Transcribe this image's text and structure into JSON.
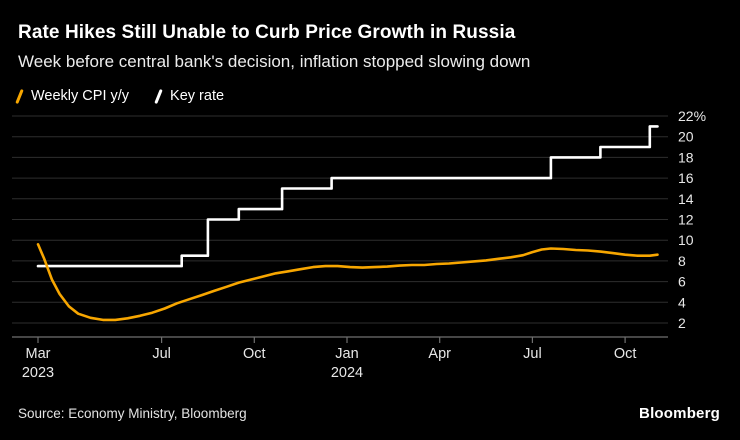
{
  "header": {
    "title": "Rate Hikes Still Unable to Curb Price Growth in Russia",
    "subtitle": "Week before central bank's decision, inflation stopped slowing down"
  },
  "legend": {
    "items": [
      {
        "label": "Weekly CPI y/y",
        "color": "#f7a600"
      },
      {
        "label": "Key rate",
        "color": "#ffffff"
      }
    ]
  },
  "chart_data": {
    "type": "line",
    "title": "Rate Hikes Still Unable to Curb Price Growth in Russia",
    "x_unit": "months since Mar 2023",
    "xlim": [
      -0.85,
      20.4
    ],
    "ylim": [
      2,
      22
    ],
    "grid": true,
    "legend_position": "top-left",
    "y_axis_side": "right",
    "x_ticks": [
      {
        "pos": 0,
        "label": "Mar",
        "year": "2023"
      },
      {
        "pos": 4,
        "label": "Jul"
      },
      {
        "pos": 7,
        "label": "Oct"
      },
      {
        "pos": 10,
        "label": "Jan",
        "year": "2024"
      },
      {
        "pos": 13,
        "label": "Apr"
      },
      {
        "pos": 16,
        "label": "Jul"
      },
      {
        "pos": 19,
        "label": "Oct"
      }
    ],
    "y_ticks": [
      {
        "value": 22,
        "label": "22%"
      },
      {
        "value": 20,
        "label": "20"
      },
      {
        "value": 18,
        "label": "18"
      },
      {
        "value": 16,
        "label": "16"
      },
      {
        "value": 14,
        "label": "14"
      },
      {
        "value": 12,
        "label": "12"
      },
      {
        "value": 10,
        "label": "10"
      },
      {
        "value": 8,
        "label": "8"
      },
      {
        "value": 6,
        "label": "6"
      },
      {
        "value": 4,
        "label": "4"
      },
      {
        "value": 2,
        "label": "2"
      }
    ],
    "series": [
      {
        "name": "Weekly CPI y/y",
        "color": "#f7a600",
        "line_style": "solid",
        "points": [
          [
            0,
            9.6
          ],
          [
            0.2,
            8.2
          ],
          [
            0.45,
            6.2
          ],
          [
            0.7,
            4.8
          ],
          [
            1,
            3.6
          ],
          [
            1.3,
            2.9
          ],
          [
            1.7,
            2.5
          ],
          [
            2.1,
            2.3
          ],
          [
            2.5,
            2.3
          ],
          [
            2.9,
            2.45
          ],
          [
            3.3,
            2.7
          ],
          [
            3.7,
            3.0
          ],
          [
            4.1,
            3.4
          ],
          [
            4.5,
            3.9
          ],
          [
            4.9,
            4.3
          ],
          [
            5.3,
            4.7
          ],
          [
            5.7,
            5.1
          ],
          [
            6.1,
            5.5
          ],
          [
            6.5,
            5.9
          ],
          [
            6.9,
            6.2
          ],
          [
            7.3,
            6.5
          ],
          [
            7.7,
            6.8
          ],
          [
            8.1,
            7.0
          ],
          [
            8.5,
            7.2
          ],
          [
            8.9,
            7.4
          ],
          [
            9.3,
            7.5
          ],
          [
            9.7,
            7.5
          ],
          [
            10.1,
            7.4
          ],
          [
            10.5,
            7.35
          ],
          [
            10.9,
            7.4
          ],
          [
            11.3,
            7.45
          ],
          [
            11.7,
            7.55
          ],
          [
            12.1,
            7.6
          ],
          [
            12.5,
            7.6
          ],
          [
            12.9,
            7.7
          ],
          [
            13.3,
            7.75
          ],
          [
            13.7,
            7.85
          ],
          [
            14.1,
            7.95
          ],
          [
            14.5,
            8.05
          ],
          [
            14.9,
            8.2
          ],
          [
            15.3,
            8.35
          ],
          [
            15.7,
            8.55
          ],
          [
            16,
            8.85
          ],
          [
            16.3,
            9.1
          ],
          [
            16.6,
            9.2
          ],
          [
            17,
            9.15
          ],
          [
            17.4,
            9.05
          ],
          [
            17.8,
            9.0
          ],
          [
            18.2,
            8.9
          ],
          [
            18.6,
            8.75
          ],
          [
            19,
            8.6
          ],
          [
            19.4,
            8.5
          ],
          [
            19.8,
            8.5
          ],
          [
            20.05,
            8.6
          ]
        ]
      },
      {
        "name": "Key rate",
        "color": "#ffffff",
        "line_style": "step",
        "points": [
          [
            0,
            7.5
          ],
          [
            4.65,
            7.5
          ],
          [
            4.65,
            8.5
          ],
          [
            5.5,
            8.5
          ],
          [
            5.5,
            12
          ],
          [
            6.5,
            12
          ],
          [
            6.5,
            13
          ],
          [
            7.9,
            13
          ],
          [
            7.9,
            15
          ],
          [
            9.5,
            15
          ],
          [
            9.5,
            16
          ],
          [
            16.6,
            16
          ],
          [
            16.6,
            18
          ],
          [
            18.2,
            18
          ],
          [
            18.2,
            19
          ],
          [
            19.8,
            19
          ],
          [
            19.8,
            21
          ],
          [
            20.05,
            21
          ]
        ]
      }
    ]
  },
  "footer": {
    "source": "Source: Economy Ministry, Bloomberg",
    "brand": "Bloomberg"
  }
}
